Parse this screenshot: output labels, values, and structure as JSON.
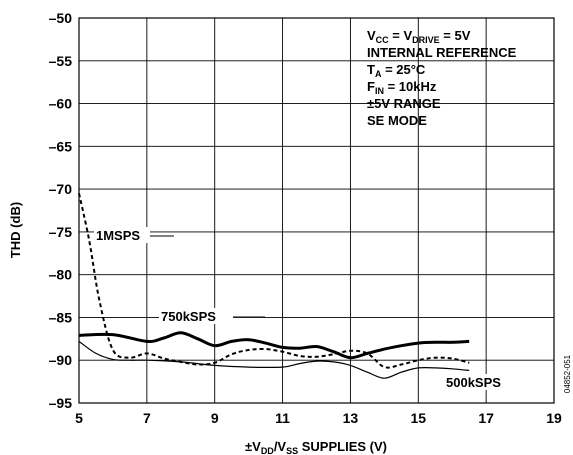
{
  "chart_data": {
    "type": "line",
    "title": "",
    "xlabel": {
      "pre": "±V",
      "sub1": "DD",
      "mid": "/V",
      "sub2": "SS",
      "post": " SUPPLIES (V)"
    },
    "ylabel": "THD (dB)",
    "xlim": [
      5,
      19
    ],
    "ylim": [
      -95,
      -50
    ],
    "x_ticks": [
      5,
      7,
      9,
      11,
      13,
      15,
      17,
      19
    ],
    "y_ticks": [
      -50,
      -55,
      -60,
      -65,
      -70,
      -75,
      -80,
      -85,
      -90,
      -95
    ],
    "x_tick_labels": [
      "5",
      "7",
      "9",
      "11",
      "13",
      "15",
      "17",
      "19"
    ],
    "y_tick_labels": [
      "–50",
      "–55",
      "–60",
      "–65",
      "–70",
      "–75",
      "–80",
      "–85",
      "–90",
      "–95"
    ],
    "grid": true,
    "series": [
      {
        "name": "1MSPS",
        "style": "dashed",
        "x": [
          5,
          5.3,
          5.6,
          6,
          6.5,
          7,
          7.5,
          8,
          8.5,
          9,
          9.5,
          10,
          10.5,
          11,
          11.5,
          12,
          12.5,
          13,
          13.5,
          14,
          14.5,
          15,
          15.5,
          16,
          16.5
        ],
        "y": [
          -70.5,
          -76,
          -83,
          -88.8,
          -89.7,
          -89.2,
          -89.8,
          -90.2,
          -90.5,
          -90.3,
          -89.3,
          -88.8,
          -88.7,
          -89,
          -89.5,
          -89.6,
          -89.3,
          -88.9,
          -89.2,
          -90.8,
          -90.5,
          -90,
          -89.7,
          -89.8,
          -90.3
        ]
      },
      {
        "name": "750kSPS",
        "style": "thick",
        "x": [
          5,
          6,
          7,
          7.5,
          8,
          8.5,
          9,
          9.5,
          10,
          10.5,
          11,
          11.5,
          12,
          12.5,
          13,
          13.5,
          14,
          14.5,
          15,
          15.5,
          16,
          16.5
        ],
        "y": [
          -87.1,
          -87,
          -87.8,
          -87.4,
          -86.8,
          -87.5,
          -88.3,
          -87.8,
          -87.6,
          -88,
          -88.5,
          -88.6,
          -88.4,
          -89,
          -89.7,
          -89.2,
          -88.7,
          -88.3,
          -88,
          -87.9,
          -87.9,
          -87.8
        ]
      },
      {
        "name": "500kSPS",
        "style": "thin",
        "x": [
          5,
          5.5,
          6,
          6.5,
          7,
          8,
          9,
          10,
          11,
          11.5,
          12,
          12.5,
          13,
          13.5,
          14,
          14.5,
          15,
          15.5,
          16,
          16.5
        ],
        "y": [
          -87.8,
          -89.2,
          -89.9,
          -90,
          -90,
          -90.2,
          -90.6,
          -90.8,
          -90.8,
          -90.4,
          -90.1,
          -90.2,
          -90.6,
          -91.4,
          -92.1,
          -91.4,
          -90.9,
          -90.9,
          -91,
          -91.2
        ]
      }
    ],
    "annotations": {
      "series_labels": [
        "1MSPS",
        "750kSPS",
        "500kSPS"
      ],
      "conditions": {
        "line1": {
          "a": "V",
          "a_sub": "CC",
          "b": " = V",
          "b_sub": "DRIVE",
          "c": " = 5V"
        },
        "line2": "INTERNAL REFERENCE",
        "line3": {
          "a": "T",
          "a_sub": "A",
          "b": " = 25°C"
        },
        "line4": {
          "a": "F",
          "a_sub": "IN",
          "b": " = 10kHz"
        },
        "line5": "±5V RANGE",
        "line6": "SE MODE"
      },
      "figure_id": "04852-051"
    }
  }
}
